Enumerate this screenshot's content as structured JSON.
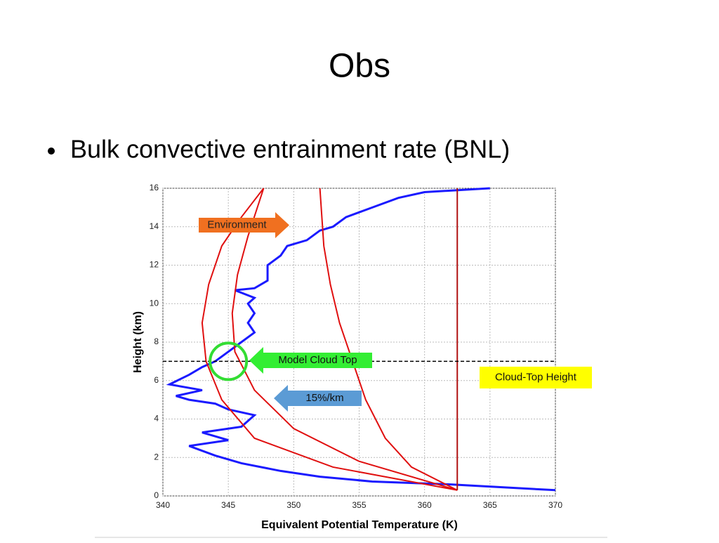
{
  "slide": {
    "title": "Obs",
    "bullet": "Bulk convective entrainment rate (BNL)"
  },
  "chart_data": {
    "type": "line",
    "xlabel": "Equivalent Potential Temperature (K)",
    "ylabel": "Height (km)",
    "xlim": [
      340,
      370
    ],
    "xticks": [
      340,
      345,
      350,
      355,
      360,
      365,
      370
    ],
    "ylim": [
      0,
      16
    ],
    "yticks": [
      0,
      2,
      4,
      6,
      8,
      10,
      12,
      14,
      16
    ],
    "grid": true,
    "hline": 7,
    "series": [
      {
        "color": "#1a1aff",
        "x": [
          370,
          362,
          356,
          352,
          349,
          346,
          344,
          342,
          345,
          343,
          346,
          347,
          345,
          344,
          342,
          341,
          343,
          340.5,
          342,
          343,
          344,
          345,
          346,
          347,
          346.5,
          347,
          346.5,
          347,
          345.5,
          347,
          348,
          348,
          349,
          349.5,
          351,
          352,
          353,
          354,
          356,
          358,
          360,
          365
        ],
        "y": [
          0.3,
          0.6,
          0.75,
          1.0,
          1.3,
          1.7,
          2.1,
          2.6,
          2.9,
          3.3,
          3.6,
          4.2,
          4.5,
          4.8,
          5.0,
          5.2,
          5.5,
          5.8,
          6.3,
          6.7,
          7.0,
          7.5,
          8.0,
          8.5,
          9.0,
          9.5,
          10.0,
          10.3,
          10.7,
          10.8,
          11.2,
          12.0,
          12.5,
          13.0,
          13.3,
          13.8,
          14.0,
          14.5,
          15.0,
          15.5,
          15.8,
          16
        ]
      },
      {
        "color": "#e01010",
        "x": [
          362.5,
          353,
          347,
          344.5,
          343.3,
          343,
          343.5,
          344.5,
          346,
          347.7
        ],
        "y": [
          0.3,
          1.5,
          3,
          5,
          7,
          9,
          11,
          13,
          14.5,
          16
        ]
      },
      {
        "color": "#e01010",
        "x": [
          362.5,
          355,
          350,
          347,
          345.5,
          345.3,
          345.7,
          346.5,
          347.7
        ],
        "y": [
          0.3,
          1.8,
          3.5,
          5.5,
          7.5,
          9.5,
          11.5,
          13.5,
          16
        ]
      },
      {
        "color": "#e01010",
        "x": [
          362.5,
          359,
          357,
          355.5,
          354.5,
          353.5,
          352.8,
          352.3,
          352
        ],
        "y": [
          0.3,
          1.5,
          3,
          5,
          7,
          9,
          11,
          13,
          16
        ]
      },
      {
        "color": "#b01010",
        "x": [
          362.5,
          362.5
        ],
        "y": [
          0.3,
          16
        ]
      }
    ],
    "annotations": [
      "Environment",
      "Model Cloud Top",
      "15%/km",
      "Cloud-Top Height"
    ]
  }
}
